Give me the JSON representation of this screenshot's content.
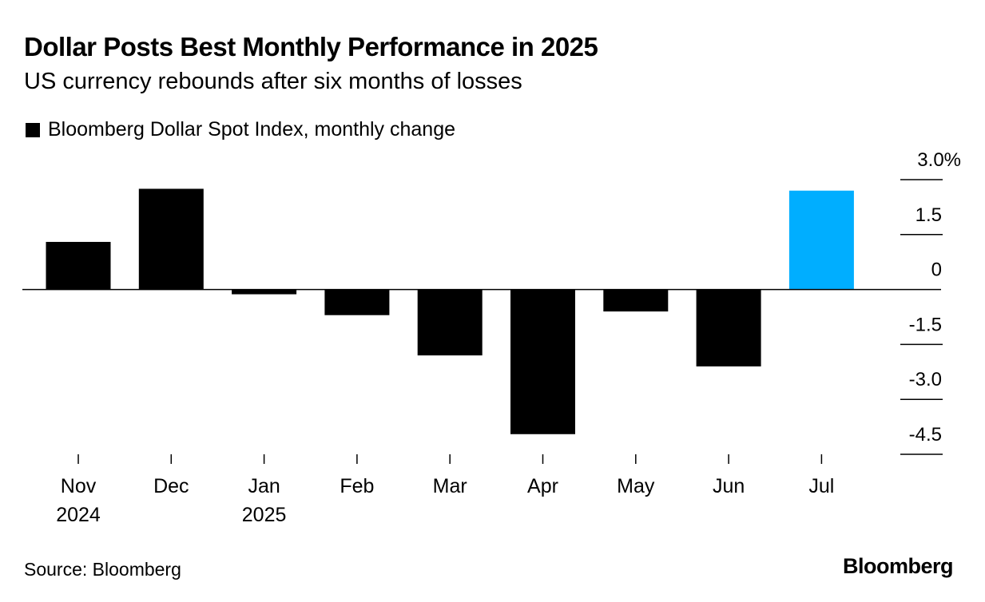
{
  "header": {
    "title": "Dollar Posts Best Monthly Performance in 2025",
    "subtitle": "US currency rebounds after six months of losses"
  },
  "legend": {
    "label": "Bloomberg Dollar Spot Index, monthly change",
    "color": "#000000"
  },
  "footer": {
    "source": "Source: Bloomberg",
    "brand": "Bloomberg"
  },
  "chart_data": {
    "type": "bar",
    "categories": [
      "Nov",
      "Dec",
      "Jan",
      "Feb",
      "Mar",
      "Apr",
      "May",
      "Jun",
      "Jul"
    ],
    "category_sublabels": [
      "2024",
      "",
      "2025",
      "",
      "",
      "",
      "",
      "",
      ""
    ],
    "series": [
      {
        "values": [
          1.3,
          2.75,
          -0.13,
          -0.7,
          -1.8,
          -3.95,
          -0.6,
          -2.1,
          2.7
        ],
        "colors": [
          "#000000",
          "#000000",
          "#000000",
          "#000000",
          "#000000",
          "#000000",
          "#000000",
          "#000000",
          "#00aeff"
        ]
      }
    ],
    "ylim": [
      -4.5,
      3.0
    ],
    "y_ticks": [
      "3.0%",
      "1.5",
      "0",
      "-1.5",
      "-3.0",
      "-4.5"
    ],
    "y_tick_values": [
      3.0,
      1.5,
      0,
      -1.5,
      -3.0,
      -4.5
    ],
    "highlight_color": "#00aeff",
    "bar_color": "#000000",
    "axis_position": "right",
    "grid": false
  }
}
